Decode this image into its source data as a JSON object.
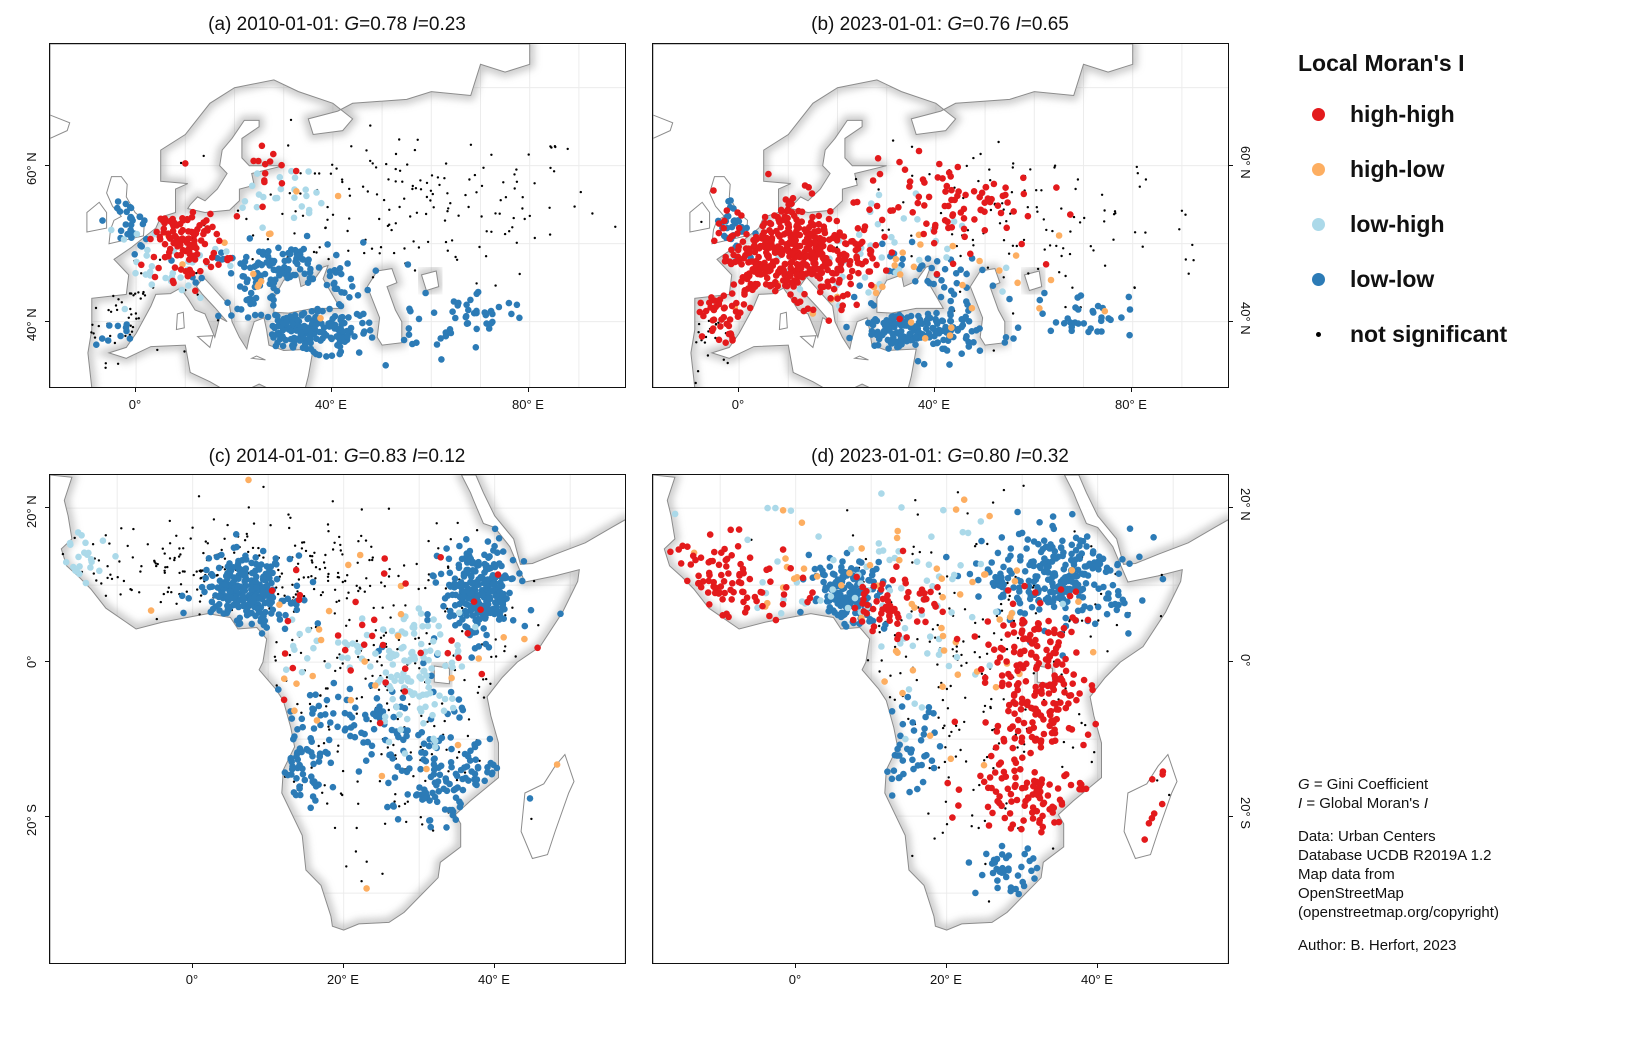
{
  "legend": {
    "title": "Local Moran's I",
    "items": [
      {
        "label": "high-high",
        "color": "#e31a1c"
      },
      {
        "label": "high-low",
        "color": "#fdae61"
      },
      {
        "label": "low-high",
        "color": "#abd9e9"
      },
      {
        "label": "low-low",
        "color": "#2c7bb6"
      },
      {
        "label": "not significant",
        "color": "#000000"
      }
    ]
  },
  "symbols": {
    "g": "G",
    "i": "I"
  },
  "panels": [
    {
      "prefix": "(a) 2010-01-01: ",
      "g": "=0.78 ",
      "i": "=0.23",
      "region": "europe",
      "x_ticks": [
        "0°",
        "40° E",
        "80° E"
      ],
      "y_ticks": [
        "60° N",
        "40° N"
      ],
      "clusters": [
        {
          "cat": "high-high",
          "lon": 10,
          "lat": 50.5,
          "slon": 4,
          "slat": 2.5,
          "n": 110
        },
        {
          "cat": "high-high",
          "lon": 25,
          "lat": 59.5,
          "slon": 5,
          "slat": 2,
          "n": 14
        },
        {
          "cat": "low-low",
          "lon": 35,
          "lat": 38.5,
          "slon": 7,
          "slat": 1.6,
          "n": 170
        },
        {
          "cat": "low-low",
          "lon": 30,
          "lat": 45.5,
          "slon": 8,
          "slat": 2.3,
          "n": 150
        },
        {
          "cat": "low-low",
          "lon": 70,
          "lat": 41,
          "slon": 5,
          "slat": 1.5,
          "n": 35
        },
        {
          "cat": "low-low",
          "lon": -1,
          "lat": 52.5,
          "slon": 2,
          "slat": 2,
          "n": 30
        },
        {
          "cat": "low-low",
          "lon": -5,
          "lat": 38,
          "slon": 3,
          "slat": 1.5,
          "n": 10
        },
        {
          "cat": "low-low",
          "lon": 55,
          "lat": 39,
          "slon": 6,
          "slat": 2,
          "n": 15
        },
        {
          "cat": "low-high",
          "lon": 5,
          "lat": 46,
          "slon": 6,
          "slat": 3,
          "n": 35
        },
        {
          "cat": "low-high",
          "lon": 28,
          "lat": 56.5,
          "slon": 5,
          "slat": 2,
          "n": 25
        },
        {
          "cat": "high-low",
          "lon": 20,
          "lat": 46,
          "slon": 15,
          "slat": 5,
          "n": 12
        },
        {
          "cat": "not significant",
          "lon": 55,
          "lat": 55,
          "slon": 20,
          "slat": 5,
          "n": 170
        },
        {
          "cat": "not significant",
          "lon": 0,
          "lat": 41,
          "slon": 6,
          "slat": 3,
          "n": 50
        }
      ]
    },
    {
      "prefix": "(b) 2023-01-01: ",
      "g": "=0.76 ",
      "i": "=0.65",
      "region": "europe",
      "x_ticks": [
        "0°",
        "40° E",
        "80° E"
      ],
      "y_ticks": [
        "60° N",
        "40° N"
      ],
      "clusters": [
        {
          "cat": "high-high",
          "lon": 10,
          "lat": 49,
          "slon": 8,
          "slat": 4,
          "n": 430
        },
        {
          "cat": "high-high",
          "lon": 42,
          "lat": 55,
          "slon": 9,
          "slat": 3,
          "n": 90
        },
        {
          "cat": "high-high",
          "lon": -4,
          "lat": 40,
          "slon": 4,
          "slat": 2,
          "n": 30
        },
        {
          "cat": "low-low",
          "lon": 35,
          "lat": 38.5,
          "slon": 7,
          "slat": 1.6,
          "n": 170
        },
        {
          "cat": "low-low",
          "lon": 38,
          "lat": 45,
          "slon": 6,
          "slat": 2,
          "n": 40
        },
        {
          "cat": "low-low",
          "lon": 70,
          "lat": 41,
          "slon": 5,
          "slat": 1.5,
          "n": 35
        },
        {
          "cat": "low-low",
          "lon": -1,
          "lat": 52.5,
          "slon": 2,
          "slat": 2,
          "n": 30
        },
        {
          "cat": "low-high",
          "lon": 20,
          "lat": 48,
          "slon": 12,
          "slat": 4,
          "n": 45
        },
        {
          "cat": "high-low",
          "lon": 35,
          "lat": 43,
          "slon": 15,
          "slat": 4,
          "n": 30
        },
        {
          "cat": "not significant",
          "lon": 60,
          "lat": 52,
          "slon": 18,
          "slat": 5,
          "n": 120
        },
        {
          "cat": "not significant",
          "lon": -5,
          "lat": 38,
          "slon": 3,
          "slat": 2,
          "n": 25
        }
      ]
    },
    {
      "prefix": "(c) 2014-01-01: ",
      "g": "=0.83 ",
      "i": "=0.12",
      "region": "africa",
      "x_ticks": [
        "0°",
        "20° E",
        "40° E"
      ],
      "y_ticks": [
        "20° N",
        "0°",
        "20° S"
      ],
      "clusters": [
        {
          "cat": "low-low",
          "lon": 7,
          "lat": 9,
          "slon": 3,
          "slat": 2.3,
          "n": 260
        },
        {
          "cat": "low-low",
          "lon": 38,
          "lat": 9,
          "slon": 2.5,
          "slat": 3,
          "n": 260
        },
        {
          "cat": "low-low",
          "lon": 24,
          "lat": -9,
          "slon": 6,
          "slat": 4,
          "n": 110
        },
        {
          "cat": "low-low",
          "lon": 35,
          "lat": -16,
          "slon": 4,
          "slat": 2.5,
          "n": 100
        },
        {
          "cat": "low-low",
          "lon": 14,
          "lat": -12,
          "slon": 2,
          "slat": 3,
          "n": 50
        },
        {
          "cat": "low-high",
          "lon": -15,
          "lat": 13,
          "slon": 2,
          "slat": 2,
          "n": 22
        },
        {
          "cat": "low-high",
          "lon": 30,
          "lat": -1,
          "slon": 3,
          "slat": 4,
          "n": 100
        },
        {
          "cat": "low-high",
          "lon": 20,
          "lat": 2,
          "slon": 5,
          "slat": 2,
          "n": 30
        },
        {
          "cat": "high-high",
          "lon": 25,
          "lat": 2,
          "slon": 10,
          "slat": 6,
          "n": 35
        },
        {
          "cat": "high-low",
          "lon": 20,
          "lat": 0,
          "slon": 15,
          "slat": 10,
          "n": 28
        },
        {
          "cat": "not significant",
          "lon": 5,
          "lat": 12,
          "slon": 12,
          "slat": 3,
          "n": 230
        },
        {
          "cat": "not significant",
          "lon": 25,
          "lat": -5,
          "slon": 12,
          "slat": 12,
          "n": 260
        }
      ]
    },
    {
      "prefix": "(d) 2023-01-01: ",
      "g": "=0.80 ",
      "i": "=0.32",
      "region": "africa",
      "x_ticks": [
        "0°",
        "20° E",
        "40° E"
      ],
      "y_ticks": [
        "20° N",
        "0°",
        "20° S"
      ],
      "clusters": [
        {
          "cat": "high-high",
          "lon": -9,
          "lat": 10,
          "slon": 5,
          "slat": 3,
          "n": 90
        },
        {
          "cat": "high-high",
          "lon": 13,
          "lat": 8,
          "slon": 3,
          "slat": 2.5,
          "n": 60
        },
        {
          "cat": "high-high",
          "lon": 32,
          "lat": -3,
          "slon": 3.5,
          "slat": 5,
          "n": 210
        },
        {
          "cat": "high-high",
          "lon": 31,
          "lat": -17,
          "slon": 4,
          "slat": 2.5,
          "n": 90
        },
        {
          "cat": "high-high",
          "lon": 48,
          "lat": -19,
          "slon": 1,
          "slat": 3,
          "n": 8
        },
        {
          "cat": "low-low",
          "lon": 7,
          "lat": 9,
          "slon": 2.5,
          "slat": 2.3,
          "n": 150
        },
        {
          "cat": "low-low",
          "lon": 35,
          "lat": 11,
          "slon": 5,
          "slat": 3,
          "n": 270
        },
        {
          "cat": "low-low",
          "lon": 15,
          "lat": -12,
          "slon": 2,
          "slat": 3,
          "n": 45
        },
        {
          "cat": "low-low",
          "lon": 28,
          "lat": -27,
          "slon": 2,
          "slat": 1.5,
          "n": 40
        },
        {
          "cat": "low-high",
          "lon": 10,
          "lat": 6,
          "slon": 12,
          "slat": 8,
          "n": 80
        },
        {
          "cat": "high-low",
          "lon": 12,
          "lat": 4,
          "slon": 14,
          "slat": 10,
          "n": 60
        },
        {
          "cat": "not significant",
          "lon": 20,
          "lat": -3,
          "slon": 14,
          "slat": 12,
          "n": 220
        }
      ]
    }
  ],
  "notes": {
    "gini_rest": " = Gini Coefficient",
    "moran_rest": " = Global Moran's ",
    "data_lines": [
      "Data: Urban Centers",
      "Database UCDB R2019A 1.2",
      "Map data from",
      "OpenStreetMap",
      "(openstreetmap.org/copyright)"
    ],
    "author": "Author: B. Herfort, 2023"
  }
}
